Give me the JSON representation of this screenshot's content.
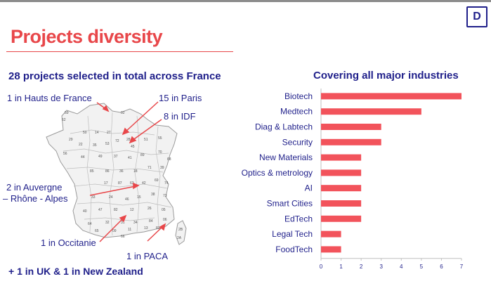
{
  "header": {
    "logo_letter": "D",
    "title": "Projects diversity",
    "subtitle": "28 projects selected in total across France",
    "footer": "+ 1 in UK & 1 in New Zealand"
  },
  "map": {
    "labels": {
      "hauts_de_france": "1 in Hauts de France",
      "paris": "15 in Paris",
      "idf": "8 in IDF",
      "auvergne": "2 in Auvergne",
      "rhone_alpes": "– Rhône - Alpes",
      "occitanie": "1 in Occitanie",
      "paca": "1 in PACA"
    },
    "accent_color": "#e8474a"
  },
  "chart_data": {
    "type": "bar",
    "orientation": "horizontal",
    "title": "Covering all major industries",
    "categories": [
      "Biotech",
      "Medtech",
      "Diag & Labtech",
      "Security",
      "New Materials",
      "Optics & metrology",
      "AI",
      "Smart Cities",
      "EdTech",
      "Legal Tech",
      "FoodTech"
    ],
    "values": [
      7,
      5,
      3,
      3,
      2,
      2,
      2,
      2,
      2,
      1,
      1
    ],
    "xlim": [
      0,
      7
    ],
    "xticks": [
      "0",
      "1",
      "2",
      "3",
      "4",
      "5",
      "6",
      "7"
    ],
    "bar_color": "#f2535b",
    "label_color": "#1f1f8a",
    "grid": false
  }
}
